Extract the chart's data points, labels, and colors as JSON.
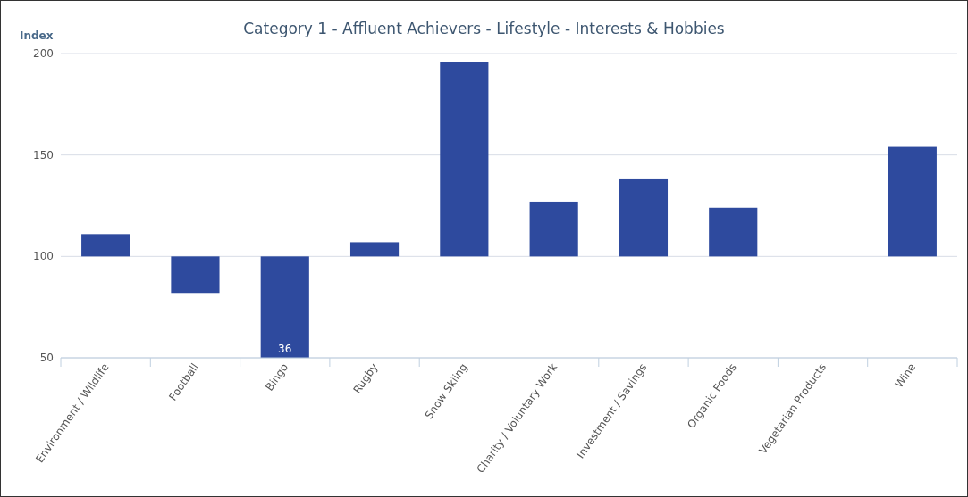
{
  "chart_data": {
    "type": "bar",
    "title": "Category 1 - Affluent Achievers - Lifestyle - Interests & Hobbies",
    "ylabel": "Index",
    "categories": [
      "Environment / Wildlife",
      "Football",
      "Bingo",
      "Rugby",
      "Snow Skiing",
      "Charity / Voluntary Work",
      "Investment / Savings",
      "Organic Foods",
      "Vegetarian Products",
      "Wine"
    ],
    "base": [
      100,
      100,
      100,
      100,
      100,
      100,
      100,
      100,
      null,
      100
    ],
    "values": [
      11,
      -18,
      -64,
      7,
      96,
      27,
      38,
      24,
      null,
      54
    ],
    "value_labels": [
      null,
      null,
      "36",
      null,
      null,
      null,
      null,
      null,
      null,
      null
    ],
    "color": "#2e4a9e",
    "ylim": [
      50,
      200
    ],
    "yticks": [
      50,
      100,
      150,
      200
    ],
    "grid": "y"
  }
}
